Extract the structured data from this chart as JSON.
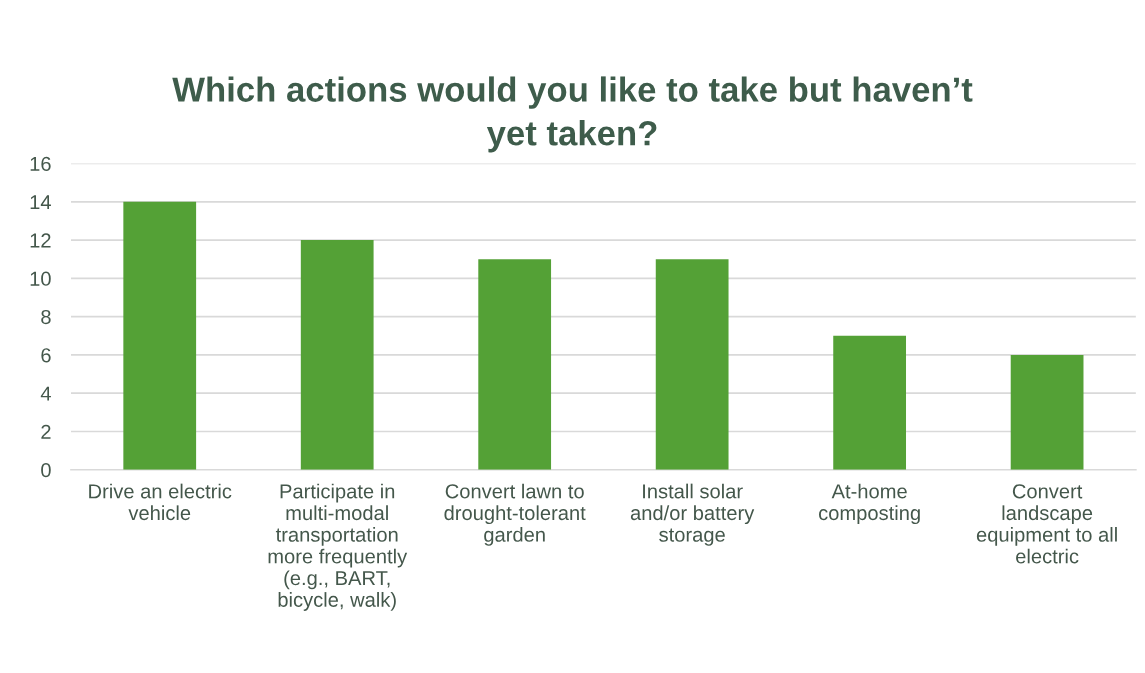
{
  "chart_data": {
    "type": "bar",
    "title": "Which actions would you like to take but haven’t\nyet taken?",
    "categories": [
      "Drive an electric\nvehicle",
      "Participate in\nmulti-modal\ntransportation\nmore frequently\n(e.g., BART,\nbicycle, walk)",
      "Convert lawn to\ndrought-tolerant\ngarden",
      "Install solar\nand/or battery\nstorage",
      "At-home\ncomposting",
      "Convert\nlandscape\nequipment to all\nelectric"
    ],
    "values": [
      14,
      12,
      11,
      11,
      7,
      6
    ],
    "color": "#54a136",
    "ylim": [
      0,
      16
    ],
    "yticks": [
      0,
      2,
      4,
      6,
      8,
      10,
      12,
      14,
      16
    ],
    "grid": "y"
  }
}
